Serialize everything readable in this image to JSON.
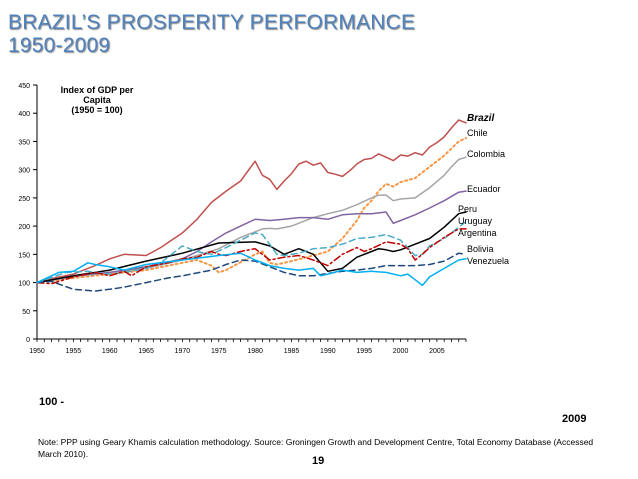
{
  "title_line1": "BRAZIL’S PROSPERITY PERFORMANCE",
  "title_line2": "1950-2009",
  "left_marker": "100 -",
  "right_marker": "2009",
  "note": "Note: PPP using Geary Khamis calculation methodology. Source: Groningen Growth and Development Centre, Total Economy Database (Accessed March 2010).",
  "page_number": "19",
  "chart_data": {
    "type": "line",
    "title": "",
    "annotation_lines": [
      "Index of GDP per",
      "Capita",
      "(1950 = 100)"
    ],
    "xlabel": "",
    "ylabel": "",
    "xlim": [
      1950,
      2009
    ],
    "ylim": [
      0,
      450
    ],
    "x_ticks": [
      "1950",
      "1955",
      "1960",
      "1965",
      "1970",
      "1975",
      "1980",
      "1985",
      "1990",
      "1995",
      "2000",
      "2005"
    ],
    "y_ticks": [
      "0",
      "50",
      "100",
      "150",
      "200",
      "250",
      "300",
      "350",
      "400",
      "450"
    ],
    "series": [
      {
        "name": "Brazil",
        "label_bold_italic": true,
        "color": "#c0504d",
        "dash": "solid",
        "x": [
          1950,
          1952,
          1955,
          1958,
          1960,
          1962,
          1965,
          1967,
          1970,
          1972,
          1974,
          1976,
          1978,
          1980,
          1981,
          1982,
          1983,
          1984,
          1985,
          1986,
          1987,
          1988,
          1989,
          1990,
          1991,
          1992,
          1993,
          1994,
          1995,
          1996,
          1997,
          1998,
          1999,
          2000,
          2001,
          2002,
          2003,
          2004,
          2005,
          2006,
          2007,
          2008,
          2009
        ],
        "values": [
          100,
          107,
          115,
          130,
          142,
          150,
          148,
          162,
          188,
          212,
          242,
          262,
          280,
          315,
          290,
          283,
          265,
          280,
          293,
          310,
          315,
          308,
          312,
          295,
          292,
          288,
          298,
          310,
          318,
          320,
          328,
          322,
          316,
          326,
          324,
          330,
          326,
          340,
          348,
          358,
          374,
          388,
          383
        ]
      },
      {
        "name": "Chile",
        "color": "#f79646",
        "dash": "dot",
        "x": [
          1950,
          1955,
          1960,
          1965,
          1970,
          1972,
          1974,
          1975,
          1976,
          1980,
          1981,
          1982,
          1983,
          1984,
          1985,
          1988,
          1990,
          1992,
          1994,
          1995,
          1996,
          1997,
          1998,
          1999,
          2000,
          2002,
          2004,
          2006,
          2008,
          2009
        ],
        "values": [
          100,
          108,
          115,
          122,
          135,
          140,
          130,
          118,
          122,
          150,
          155,
          135,
          132,
          135,
          138,
          148,
          155,
          178,
          210,
          232,
          245,
          262,
          275,
          270,
          278,
          285,
          305,
          325,
          350,
          356
        ]
      },
      {
        "name": "Colombia",
        "color": "#a5a5a5",
        "dash": "solid",
        "x": [
          1950,
          1955,
          1960,
          1965,
          1970,
          1975,
          1978,
          1980,
          1981,
          1982,
          1983,
          1985,
          1988,
          1990,
          1992,
          1994,
          1996,
          1997,
          1998,
          1999,
          2000,
          2002,
          2004,
          2006,
          2007,
          2008,
          2009
        ],
        "values": [
          100,
          110,
          118,
          125,
          140,
          160,
          180,
          190,
          195,
          196,
          195,
          200,
          215,
          222,
          228,
          238,
          250,
          255,
          255,
          245,
          248,
          250,
          268,
          290,
          305,
          318,
          322
        ]
      },
      {
        "name": "Ecuador",
        "color": "#8064a2",
        "dash": "solid",
        "x": [
          1950,
          1955,
          1960,
          1965,
          1970,
          1972,
          1974,
          1976,
          1978,
          1980,
          1982,
          1984,
          1986,
          1988,
          1990,
          1992,
          1994,
          1996,
          1998,
          1999,
          2000,
          2002,
          2004,
          2006,
          2008,
          2009
        ],
        "values": [
          100,
          112,
          118,
          128,
          142,
          155,
          172,
          188,
          200,
          212,
          210,
          212,
          215,
          215,
          212,
          220,
          222,
          222,
          225,
          205,
          210,
          220,
          232,
          245,
          260,
          262
        ]
      },
      {
        "name": "Peru",
        "color": "#000000",
        "dash": "solid",
        "x": [
          1950,
          1955,
          1960,
          1965,
          1970,
          1975,
          1980,
          1982,
          1984,
          1986,
          1988,
          1990,
          1992,
          1994,
          1996,
          1997,
          1998,
          1999,
          2000,
          2002,
          2004,
          2006,
          2008,
          2009
        ],
        "values": [
          100,
          112,
          122,
          138,
          152,
          170,
          172,
          165,
          150,
          160,
          150,
          120,
          125,
          145,
          155,
          160,
          158,
          155,
          158,
          168,
          178,
          198,
          222,
          225
        ]
      },
      {
        "name": "Uruguay",
        "color": "#4bacc6",
        "dash": "dash",
        "x": [
          1950,
          1954,
          1957,
          1960,
          1962,
          1965,
          1967,
          1970,
          1972,
          1974,
          1976,
          1978,
          1980,
          1981,
          1982,
          1983,
          1984,
          1986,
          1988,
          1990,
          1992,
          1994,
          1996,
          1998,
          2000,
          2002,
          2003,
          2004,
          2006,
          2008,
          2009
        ],
        "values": [
          100,
          118,
          120,
          115,
          118,
          125,
          135,
          165,
          155,
          150,
          162,
          175,
          188,
          185,
          168,
          150,
          148,
          152,
          160,
          162,
          168,
          178,
          180,
          185,
          175,
          148,
          150,
          165,
          178,
          198,
          208
        ]
      },
      {
        "name": "Argentina",
        "color": "#c00000",
        "dash": "dashdot",
        "x": [
          1950,
          1952,
          1955,
          1958,
          1960,
          1962,
          1963,
          1965,
          1968,
          1970,
          1972,
          1974,
          1975,
          1976,
          1978,
          1980,
          1981,
          1982,
          1984,
          1986,
          1988,
          1990,
          1992,
          1994,
          1995,
          1996,
          1998,
          2000,
          2001,
          2002,
          2003,
          2004,
          2006,
          2008,
          2009
        ],
        "values": [
          100,
          98,
          110,
          118,
          112,
          120,
          112,
          128,
          135,
          142,
          145,
          155,
          150,
          148,
          155,
          160,
          150,
          140,
          145,
          148,
          140,
          130,
          150,
          162,
          155,
          160,
          172,
          168,
          160,
          140,
          150,
          162,
          180,
          195,
          195
        ]
      },
      {
        "name": "Bolivia",
        "color": "#1f497d",
        "dash": "dash",
        "x": [
          1950,
          1952,
          1955,
          1958,
          1960,
          1962,
          1965,
          1968,
          1970,
          1974,
          1976,
          1978,
          1980,
          1982,
          1984,
          1986,
          1988,
          1990,
          1992,
          1994,
          1996,
          1998,
          2000,
          2002,
          2004,
          2006,
          2008,
          2009
        ],
        "values": [
          100,
          102,
          88,
          85,
          88,
          92,
          100,
          108,
          112,
          122,
          132,
          140,
          138,
          128,
          118,
          112,
          112,
          116,
          120,
          122,
          125,
          130,
          130,
          130,
          132,
          138,
          152,
          150
        ]
      },
      {
        "name": "Venezuela",
        "color": "#00b0f0",
        "dash": "solid",
        "x": [
          1950,
          1953,
          1955,
          1957,
          1958,
          1960,
          1962,
          1965,
          1970,
          1975,
          1978,
          1980,
          1982,
          1984,
          1986,
          1988,
          1989,
          1990,
          1992,
          1994,
          1996,
          1998,
          2000,
          2001,
          2002,
          2003,
          2004,
          2006,
          2008,
          2009
        ],
        "values": [
          100,
          118,
          120,
          135,
          132,
          128,
          122,
          132,
          140,
          148,
          152,
          140,
          130,
          125,
          122,
          125,
          112,
          115,
          122,
          118,
          120,
          118,
          112,
          115,
          105,
          95,
          110,
          125,
          140,
          142
        ]
      }
    ]
  }
}
